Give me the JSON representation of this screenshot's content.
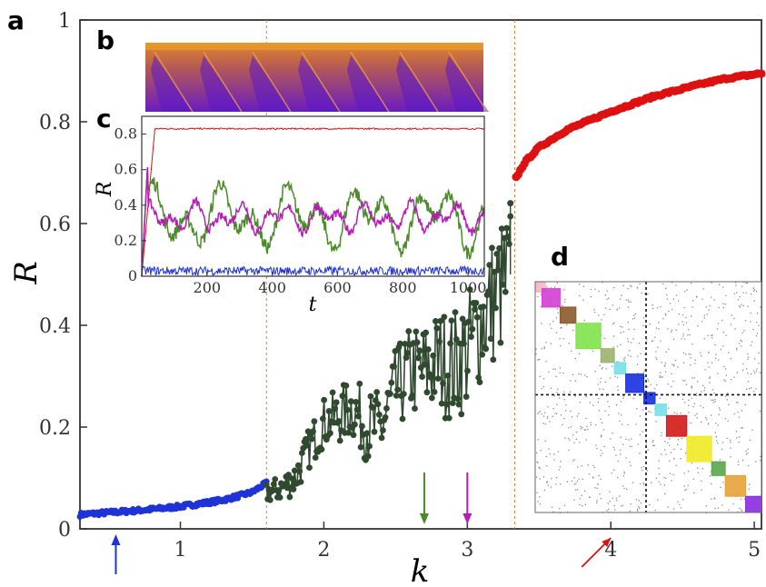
{
  "panels": {
    "a": "a",
    "b": "b",
    "c": "c",
    "d": "d"
  },
  "colors": {
    "blue": "#1f33d6",
    "dark_green": "#2f4a2f",
    "red": "#dd1111",
    "inset_green": "#4d8a2a",
    "magenta": "#b21fb2",
    "orange_line": "#e07a3a"
  },
  "chart_data": [
    {
      "id": "main",
      "type": "scatter",
      "xlabel": "k",
      "ylabel": "R",
      "xlim": [
        0.3,
        5.05
      ],
      "ylim": [
        0,
        1
      ],
      "xticks": [
        "1",
        "2",
        "3",
        "4",
        "5"
      ],
      "yticks": [
        "0",
        "0.2",
        "0.4",
        "0.6",
        "0.8",
        "1"
      ],
      "vlines": [
        1.6,
        3.33
      ],
      "arrows": [
        {
          "x": 0.55,
          "color": "blue"
        },
        {
          "x": 2.7,
          "color": "green"
        },
        {
          "x": 3.0,
          "color": "magenta"
        },
        {
          "x": 4.0,
          "color": "red"
        }
      ],
      "series": [
        {
          "color": "blue",
          "k_range": [
            0.3,
            1.6
          ],
          "points": [
            [
              0.3,
              0.028
            ],
            [
              0.5,
              0.032
            ],
            [
              0.7,
              0.036
            ],
            [
              0.9,
              0.041
            ],
            [
              1.0,
              0.044
            ],
            [
              1.1,
              0.048
            ],
            [
              1.2,
              0.052
            ],
            [
              1.3,
              0.057
            ],
            [
              1.4,
              0.064
            ],
            [
              1.5,
              0.072
            ],
            [
              1.6,
              0.09
            ]
          ]
        },
        {
          "color": "dark_green",
          "k_range": [
            1.6,
            3.3
          ],
          "points": [
            [
              1.6,
              0.07
            ],
            [
              1.7,
              0.08
            ],
            [
              1.8,
              0.1
            ],
            [
              1.9,
              0.16
            ],
            [
              2.0,
              0.21
            ],
            [
              2.1,
              0.22
            ],
            [
              2.2,
              0.24
            ],
            [
              2.3,
              0.2
            ],
            [
              2.4,
              0.2
            ],
            [
              2.5,
              0.27
            ],
            [
              2.6,
              0.31
            ],
            [
              2.7,
              0.31
            ],
            [
              2.8,
              0.33
            ],
            [
              2.9,
              0.32
            ],
            [
              3.0,
              0.35
            ],
            [
              3.1,
              0.41
            ],
            [
              3.2,
              0.46
            ],
            [
              3.3,
              0.5
            ]
          ]
        },
        {
          "color": "red",
          "k_range": [
            3.34,
            5.05
          ],
          "points": [
            [
              3.3,
              0.64
            ],
            [
              3.34,
              0.69
            ],
            [
              3.4,
              0.72
            ],
            [
              3.5,
              0.75
            ],
            [
              3.7,
              0.785
            ],
            [
              4.0,
              0.82
            ],
            [
              4.3,
              0.85
            ],
            [
              4.6,
              0.872
            ],
            [
              4.8,
              0.885
            ],
            [
              5.05,
              0.895
            ]
          ]
        }
      ]
    },
    {
      "id": "inset_c",
      "type": "line",
      "xlabel": "t",
      "ylabel": "R",
      "xlim": [
        0,
        1050
      ],
      "ylim": [
        0,
        0.9
      ],
      "xticks": [
        "200",
        "400",
        "600",
        "800",
        "1000"
      ],
      "yticks": [
        "0",
        "0.2",
        "0.4",
        "0.6",
        "0.8"
      ],
      "series": [
        {
          "color": "red",
          "level": 0.83,
          "amplitude": 0.004
        },
        {
          "color": "magenta",
          "level": 0.33,
          "amplitude": 0.09
        },
        {
          "color": "inset_green",
          "level": 0.33,
          "amplitude": 0.2
        },
        {
          "color": "blue",
          "level": 0.03,
          "amplitude": 0.025
        }
      ]
    }
  ],
  "matrix_d": {
    "blocks": [
      {
        "start": 0.0,
        "size": 0.045,
        "color": "#f4b6c0"
      },
      {
        "start": 0.03,
        "size": 0.08,
        "color": "#d23fd2"
      },
      {
        "start": 0.11,
        "size": 0.07,
        "color": "#8b5a2b"
      },
      {
        "start": 0.18,
        "size": 0.11,
        "color": "#7fe24a"
      },
      {
        "start": 0.29,
        "size": 0.06,
        "color": "#9bb36b"
      },
      {
        "start": 0.35,
        "size": 0.05,
        "color": "#77e0e8"
      },
      {
        "start": 0.4,
        "size": 0.08,
        "color": "#1630e0"
      },
      {
        "start": 0.48,
        "size": 0.05,
        "color": "#1630e0"
      },
      {
        "start": 0.53,
        "size": 0.05,
        "color": "#77e0e8"
      },
      {
        "start": 0.58,
        "size": 0.09,
        "color": "#d41818"
      },
      {
        "start": 0.67,
        "size": 0.11,
        "color": "#f0ea22"
      },
      {
        "start": 0.78,
        "size": 0.06,
        "color": "#58a848"
      },
      {
        "start": 0.84,
        "size": 0.09,
        "color": "#e6a23a"
      },
      {
        "start": 0.93,
        "size": 0.07,
        "color": "#8a2be2"
      }
    ],
    "dashed_split": 0.49
  }
}
